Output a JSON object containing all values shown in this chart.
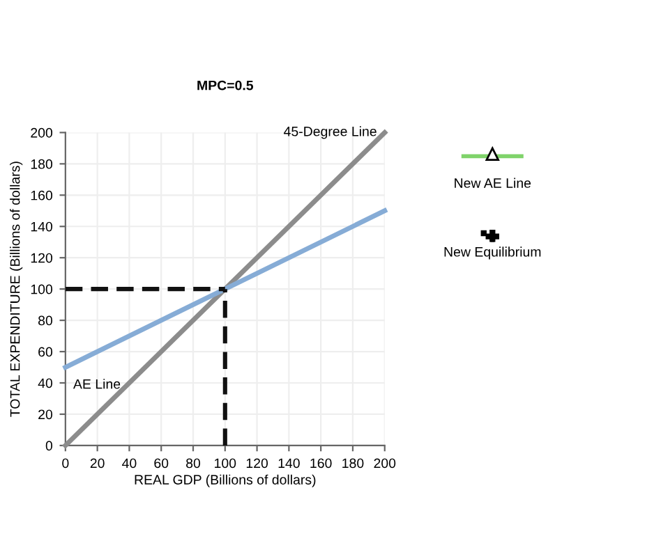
{
  "chart_data": {
    "type": "line",
    "title": "MPC=0.5",
    "xlabel": "REAL GDP (Billions of dollars)",
    "ylabel": "TOTAL EXPENDITURE (Billions of dollars)",
    "series": [
      {
        "name": "45-Degree Line",
        "x": [
          0,
          200
        ],
        "values": [
          0,
          200
        ],
        "color": "#8c8c8c"
      },
      {
        "name": "AE Line",
        "x": [
          0,
          200
        ],
        "values": [
          50,
          150
        ],
        "color": "#86acd6"
      },
      {
        "x": [
          0,
          100
        ],
        "values": [
          100,
          100
        ],
        "color": "#111111",
        "line_style": "dashed"
      },
      {
        "x": [
          100,
          100
        ],
        "values": [
          0,
          100
        ],
        "color": "#111111",
        "line_style": "dashed"
      }
    ],
    "annotations": [
      "New AE Line",
      "New Equilibrium"
    ],
    "xlim": [
      0,
      200
    ],
    "ylim": [
      0,
      200
    ],
    "xticks": [
      0,
      20,
      40,
      60,
      80,
      100,
      120,
      140,
      160,
      180,
      200
    ],
    "yticks": [
      0,
      20,
      40,
      60,
      80,
      100,
      120,
      140,
      160,
      180,
      200
    ],
    "grid": true,
    "line_style": "solid",
    "marker": "none"
  }
}
